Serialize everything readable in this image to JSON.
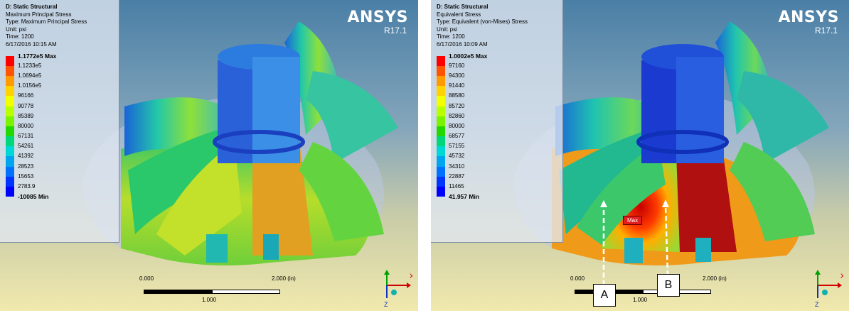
{
  "brand": {
    "name": "ANSYS",
    "version": "R17.1"
  },
  "left": {
    "info": {
      "title": "D: Static Structural",
      "result": "Maximum Principal Stress",
      "type": "Type: Maximum Principal Stress",
      "unit": "Unit: psi",
      "time": "Time: 1200",
      "timestamp": "6/17/2016 10:15 AM"
    },
    "legend": {
      "labels": [
        "1.1772e5 Max",
        "1.1233e5",
        "1.0694e5",
        "1.0156e5",
        "96166",
        "90778",
        "85389",
        "80000",
        "67131",
        "54261",
        "41392",
        "28523",
        "15653",
        "2783.9"
      ],
      "min_label": "-10085 Min"
    }
  },
  "right": {
    "info": {
      "title": "D: Static Structural",
      "result": "Equivalent Stress",
      "type": "Type: Equivalent (von-Mises) Stress",
      "unit": "Unit: psi",
      "time": "Time: 1200",
      "timestamp": "6/17/2016 10:09 AM"
    },
    "legend": {
      "labels": [
        "1.0002e5 Max",
        "97160",
        "94300",
        "91440",
        "88580",
        "85720",
        "82860",
        "80000",
        "68577",
        "57155",
        "45732",
        "34310",
        "22887",
        "11465"
      ],
      "min_label": "41.957 Min"
    },
    "max_tag": "Max",
    "callouts": {
      "a": "A",
      "b": "B"
    }
  },
  "scale": {
    "zero": "0.000",
    "two": "2.000 (in)",
    "one": "1.000"
  },
  "triad": {
    "x": "X",
    "z": "Z"
  },
  "legend_colors": [
    "#ff0000",
    "#ff5500",
    "#ff9a00",
    "#ffd200",
    "#f2ff00",
    "#b8ff00",
    "#7af200",
    "#22d800",
    "#00d77a",
    "#00d7d7",
    "#00a5f0",
    "#0070ff",
    "#0035ff",
    "#0000ff"
  ]
}
